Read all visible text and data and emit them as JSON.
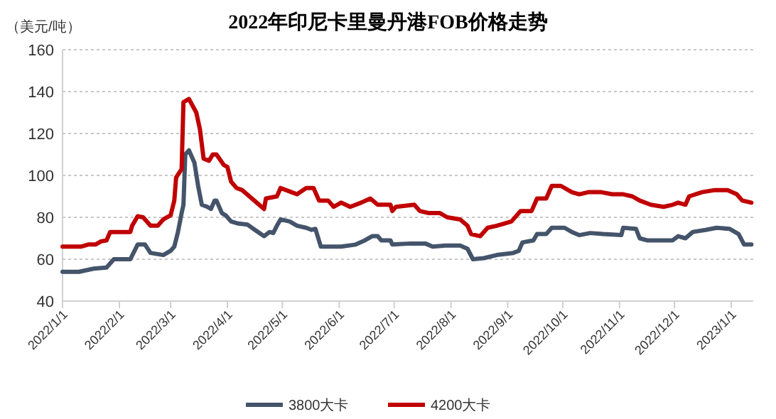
{
  "chart_data": {
    "type": "line",
    "title": "2022年印尼卡里曼丹港FOB价格走势",
    "ylabel": "（美元/吨）",
    "xlim": [
      "2022-01-01",
      "2023-01-13"
    ],
    "xticks": [
      {
        "value": "2022-01-01",
        "label": "2022/1/1"
      },
      {
        "value": "2022-02-01",
        "label": "2022/2/1"
      },
      {
        "value": "2022-03-01",
        "label": "2022/3/1"
      },
      {
        "value": "2022-04-01",
        "label": "2022/4/1"
      },
      {
        "value": "2022-05-01",
        "label": "2022/5/1"
      },
      {
        "value": "2022-06-01",
        "label": "2022/6/1"
      },
      {
        "value": "2022-07-01",
        "label": "2022/7/1"
      },
      {
        "value": "2022-08-01",
        "label": "2022/8/1"
      },
      {
        "value": "2022-09-01",
        "label": "2022/9/1"
      },
      {
        "value": "2022-10-01",
        "label": "2022/10/1"
      },
      {
        "value": "2022-11-01",
        "label": "2022/11/1"
      },
      {
        "value": "2022-12-01",
        "label": "2022/12/1"
      },
      {
        "value": "2023-01-01",
        "label": "2023/1/1"
      }
    ],
    "ylim": [
      40,
      160
    ],
    "yticks": [
      40,
      60,
      80,
      100,
      120,
      140,
      160
    ],
    "grid": "y",
    "legend": "bottom",
    "line_style": "solid",
    "marker": "none",
    "series": [
      {
        "name": "3800大卡",
        "color": "#44546a",
        "x": [
          "2022-01-01",
          "2022-01-10",
          "2022-01-18",
          "2022-01-25",
          "2022-01-29",
          "2022-02-07",
          "2022-02-11",
          "2022-02-15",
          "2022-02-18",
          "2022-02-25",
          "2022-03-01",
          "2022-03-03",
          "2022-03-05",
          "2022-03-07",
          "2022-03-08",
          "2022-03-09",
          "2022-03-11",
          "2022-03-14",
          "2022-03-16",
          "2022-03-18",
          "2022-03-21",
          "2022-03-23",
          "2022-03-25",
          "2022-03-26",
          "2022-03-29",
          "2022-03-31",
          "2022-04-03",
          "2022-04-07",
          "2022-04-12",
          "2022-04-16",
          "2022-04-21",
          "2022-04-24",
          "2022-04-26",
          "2022-04-28",
          "2022-04-30",
          "2022-05-05",
          "2022-05-09",
          "2022-05-14",
          "2022-05-17",
          "2022-05-19",
          "2022-05-22",
          "2022-06-02",
          "2022-06-10",
          "2022-06-15",
          "2022-06-19",
          "2022-06-22",
          "2022-06-24",
          "2022-06-29",
          "2022-06-30",
          "2022-07-10",
          "2022-07-18",
          "2022-07-22",
          "2022-07-29",
          "2022-08-06",
          "2022-08-10",
          "2022-08-13",
          "2022-08-19",
          "2022-08-26",
          "2022-09-04",
          "2022-09-07",
          "2022-09-09",
          "2022-09-15",
          "2022-09-17",
          "2022-09-22",
          "2022-09-25",
          "2022-10-02",
          "2022-10-06",
          "2022-10-10",
          "2022-10-16",
          "2022-10-23",
          "2022-11-02",
          "2022-11-03",
          "2022-11-10",
          "2022-11-12",
          "2022-11-16",
          "2022-11-30",
          "2022-12-03",
          "2022-12-07",
          "2022-12-11",
          "2022-12-18",
          "2022-12-24",
          "2022-12-31",
          "2023-01-05",
          "2023-01-08",
          "2023-01-12"
        ],
        "values": [
          54,
          54,
          55.5,
          56,
          60,
          60,
          67,
          67,
          63,
          62,
          64,
          66,
          73,
          82,
          86,
          110,
          112,
          106,
          95,
          86,
          85,
          84,
          88,
          88,
          82,
          81,
          78,
          77,
          76.5,
          74,
          71,
          73,
          72.5,
          76,
          79,
          78,
          76,
          75,
          74,
          74.5,
          66,
          66,
          67,
          69,
          71,
          71,
          69,
          69,
          67,
          67.5,
          67.5,
          66,
          66.5,
          66.5,
          65,
          60,
          60.5,
          62,
          63,
          64,
          68,
          69,
          72,
          72,
          75,
          75,
          73,
          71.5,
          72.5,
          72,
          71.5,
          75,
          74.5,
          70,
          69,
          69,
          71,
          70,
          73,
          74,
          75,
          74.5,
          72,
          67,
          67
        ]
      },
      {
        "name": "4200大卡",
        "color": "#c00000",
        "x": [
          "2022-01-01",
          "2022-01-11",
          "2022-01-15",
          "2022-01-19",
          "2022-01-22",
          "2022-01-25",
          "2022-01-27",
          "2022-02-07",
          "2022-02-08",
          "2022-02-11",
          "2022-02-14",
          "2022-02-18",
          "2022-02-22",
          "2022-02-25",
          "2022-03-01",
          "2022-03-03",
          "2022-03-04",
          "2022-03-07",
          "2022-03-08",
          "2022-03-11",
          "2022-03-15",
          "2022-03-17",
          "2022-03-19",
          "2022-03-22",
          "2022-03-24",
          "2022-03-26",
          "2022-03-30",
          "2022-04-01",
          "2022-04-03",
          "2022-04-06",
          "2022-04-09",
          "2022-04-13",
          "2022-04-17",
          "2022-04-21",
          "2022-04-22",
          "2022-04-28",
          "2022-04-30",
          "2022-05-06",
          "2022-05-09",
          "2022-05-14",
          "2022-05-18",
          "2022-05-21",
          "2022-05-26",
          "2022-05-29",
          "2022-06-02",
          "2022-06-07",
          "2022-06-13",
          "2022-06-18",
          "2022-06-22",
          "2022-06-29",
          "2022-06-30",
          "2022-07-02",
          "2022-07-12",
          "2022-07-15",
          "2022-07-20",
          "2022-07-26",
          "2022-07-30",
          "2022-08-06",
          "2022-08-10",
          "2022-08-12",
          "2022-08-17",
          "2022-08-21",
          "2022-08-26",
          "2022-09-03",
          "2022-09-08",
          "2022-09-14",
          "2022-09-17",
          "2022-09-22",
          "2022-09-25",
          "2022-09-30",
          "2022-10-06",
          "2022-10-10",
          "2022-10-15",
          "2022-10-22",
          "2022-10-28",
          "2022-11-03",
          "2022-11-08",
          "2022-11-12",
          "2022-11-18",
          "2022-11-25",
          "2022-11-30",
          "2022-12-03",
          "2022-12-07",
          "2022-12-09",
          "2022-12-16",
          "2022-12-23",
          "2022-12-30",
          "2023-01-04",
          "2023-01-07",
          "2023-01-12"
        ],
        "values": [
          66,
          66,
          67,
          67,
          68.5,
          69,
          73,
          73,
          76,
          80.5,
          80,
          76,
          76,
          79,
          81,
          88,
          99,
          103,
          135,
          136.5,
          130,
          122,
          108,
          107,
          110,
          110,
          105,
          104,
          97,
          94,
          93,
          90,
          87,
          84,
          89,
          90,
          94,
          92,
          91,
          94,
          94,
          88,
          88,
          85,
          87,
          85,
          87,
          89,
          86,
          86,
          83,
          85,
          86,
          83,
          82,
          82,
          80,
          79,
          76,
          72,
          71,
          75,
          76,
          78,
          83,
          83,
          89,
          89,
          95,
          95,
          92,
          91,
          92,
          92,
          91,
          91,
          90,
          88,
          86,
          85,
          86,
          87,
          86,
          90,
          92,
          93,
          93,
          91,
          88,
          87
        ]
      }
    ]
  }
}
